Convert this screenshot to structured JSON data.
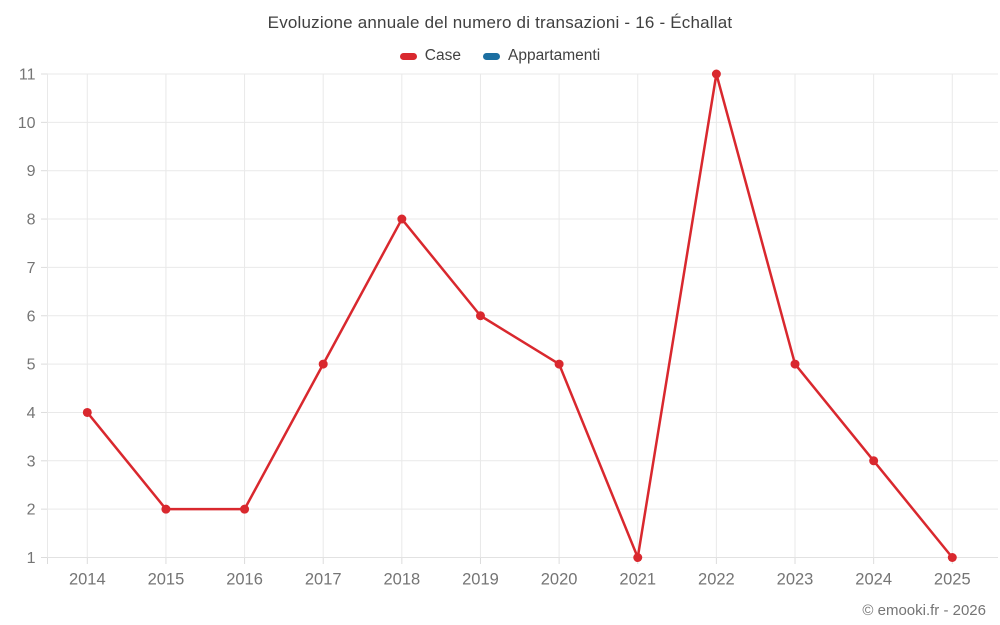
{
  "title": "Evoluzione annuale del numero di transazioni - 16 - Échallat",
  "footer": "© emooki.fr - 2026",
  "chart_data": {
    "type": "line",
    "categories": [
      "2014",
      "2015",
      "2016",
      "2017",
      "2018",
      "2019",
      "2020",
      "2021",
      "2022",
      "2023",
      "2024",
      "2025"
    ],
    "series": [
      {
        "name": "Case",
        "color": "#d9282e",
        "values": [
          4,
          2,
          2,
          5,
          8,
          6,
          5,
          1,
          11,
          5,
          3,
          1
        ]
      },
      {
        "name": "Appartamenti",
        "color": "#1c6fa1",
        "values": []
      }
    ],
    "title": "Evoluzione annuale del numero di transazioni - 16 - Échallat",
    "xlabel": "",
    "ylabel": "",
    "ylim": [
      1,
      11
    ],
    "yticks": [
      1,
      2,
      3,
      4,
      5,
      6,
      7,
      8,
      9,
      10,
      11
    ],
    "grid": true,
    "legend_position": "top"
  }
}
